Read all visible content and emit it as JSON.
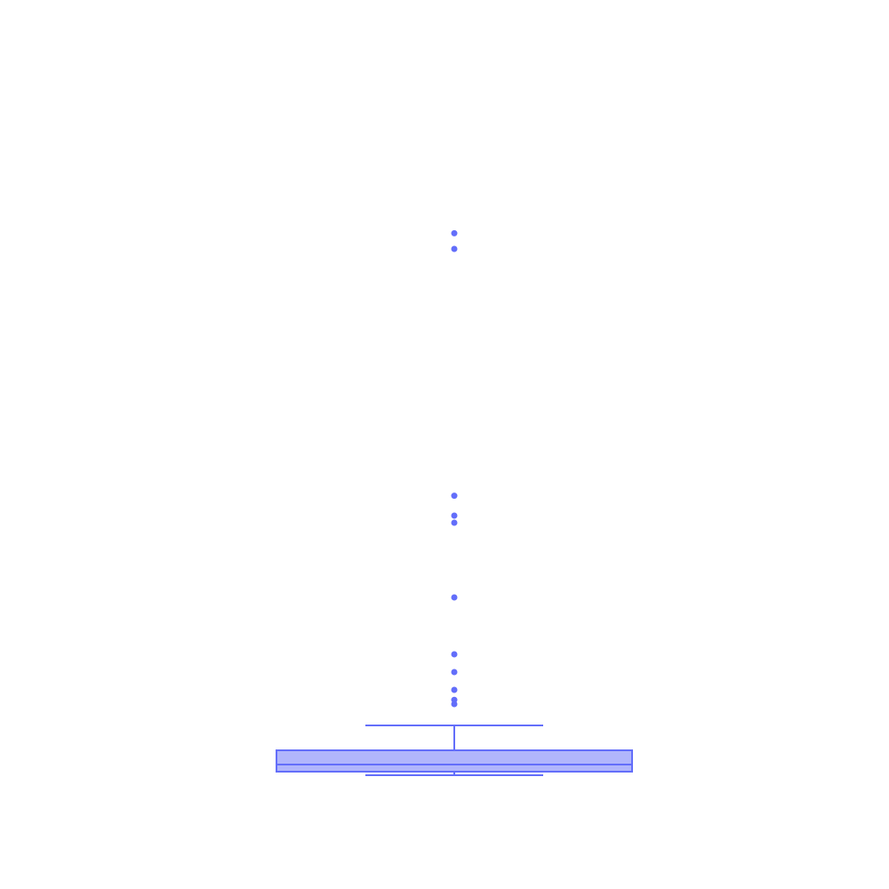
{
  "chart_data": {
    "type": "box",
    "title": "",
    "xlabel": "",
    "ylabel": "",
    "ylim": [
      0,
      100
    ],
    "grid": false,
    "legend": "none",
    "colors": {
      "stroke": "#636efa",
      "fill": "#b1b6fc",
      "background": "#ffffff"
    },
    "series": [
      {
        "q1": 1.5,
        "median": 2.5,
        "q3": 4.5,
        "lower_whisker": 1.0,
        "upper_whisker": 8.0,
        "outliers": [
          11.0,
          11.6,
          13.0,
          15.5,
          18.0,
          26.0,
          36.5,
          37.5,
          40.3,
          75.0,
          77.2
        ]
      }
    ]
  }
}
